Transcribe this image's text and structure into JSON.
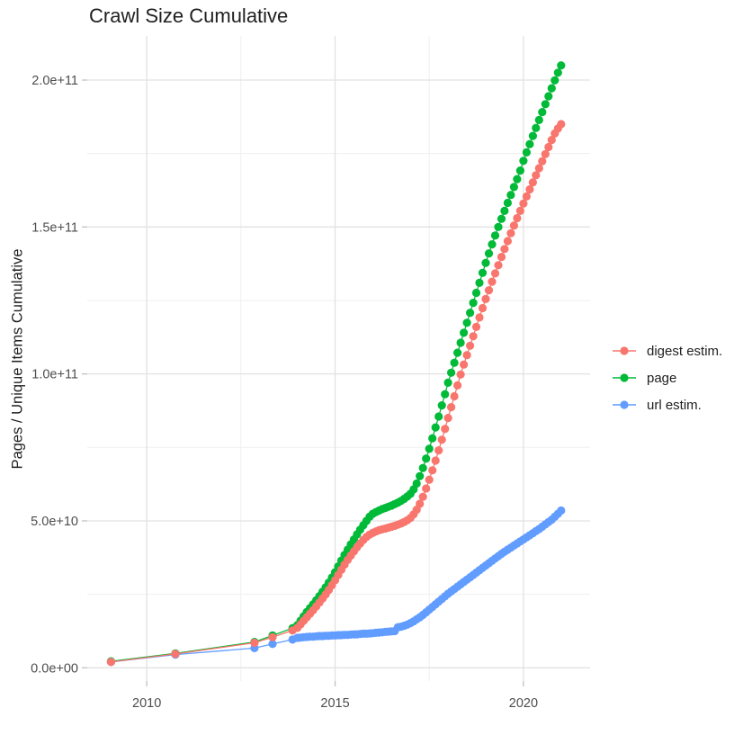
{
  "chart": {
    "title": "Crawl Size Cumulative",
    "ylabel": "Pages / Unique Items Cumulative",
    "xlabel": ""
  },
  "legend": {
    "items": [
      {
        "label": "digest estim.",
        "color": "#F8766D"
      },
      {
        "label": "page",
        "color": "#00BA38"
      },
      {
        "label": "url estim.",
        "color": "#619CFF"
      }
    ]
  },
  "chart_data": {
    "type": "scatter",
    "title": "Crawl Size Cumulative",
    "xlabel": "",
    "ylabel": "Pages / Unique Items Cumulative",
    "value_unit": "1e9 (values stored in billions; axis shows scientific notation)",
    "x_ticks": [
      2010,
      2015,
      2020
    ],
    "x_tick_labels": [
      "2010",
      "2015",
      "2020"
    ],
    "x_minor_ticks": [
      2012.5,
      2017.5
    ],
    "y_ticks_e9": [
      0,
      50,
      100,
      150,
      200
    ],
    "y_tick_labels": [
      "0.0e+00",
      "5.0e+10",
      "1.0e+11",
      "1.5e+11",
      "2.0e+11"
    ],
    "y_minor_ticks_e9": [
      25,
      75,
      125,
      175
    ],
    "xlim": [
      2008.42,
      2021.77
    ],
    "ylim_e9": [
      -4.5,
      215
    ],
    "grid": true,
    "legend_position": "right",
    "colors": {
      "major_grid": "#e2e2e2",
      "minor_grid": "#efefef",
      "tick": "#c2c2c2",
      "tick_text": "#4d4d4d"
    },
    "series": [
      {
        "name": "page",
        "color": "#00BA38",
        "early_points": [
          [
            2009.05,
            2.2
          ],
          [
            2010.76,
            4.9
          ],
          [
            2012.86,
            8.8
          ],
          [
            2013.34,
            11.0
          ],
          [
            2013.87,
            13.5
          ]
        ],
        "monthly_from": 2014.0,
        "monthly_step": 0.083333,
        "monthly_values_e9": [
          14.5,
          16.0,
          17.5,
          19.0,
          20.3,
          21.6,
          23.0,
          24.4,
          25.9,
          27.4,
          29.0,
          30.7,
          32.5,
          34.5,
          36.5,
          38.4,
          40.2,
          42.0,
          43.7,
          45.4,
          47.0,
          48.5,
          50.0,
          51.4,
          52.4,
          53.0,
          53.5,
          54.0,
          54.4,
          54.8,
          55.2,
          55.7,
          56.2,
          56.8,
          57.5,
          58.3,
          59.2,
          60.7,
          62.7,
          65.2,
          68.0,
          71.2,
          74.5,
          78.1,
          81.8,
          85.5,
          89.3,
          93.1,
          97.0,
          100.4,
          103.8,
          107.2,
          110.6,
          114.0,
          117.4,
          120.8,
          124.2,
          127.6,
          131.0,
          134.4,
          137.8,
          141.0,
          144.1,
          147.1,
          150.0,
          152.8,
          155.5,
          158.2,
          160.9,
          163.6,
          166.3,
          169.2,
          172.5,
          175.4,
          178.2,
          181.0,
          183.7,
          186.4,
          189.1,
          191.8,
          194.5,
          197.2,
          199.9,
          202.5,
          205.0
        ]
      },
      {
        "name": "url estim.",
        "color": "#619CFF",
        "early_points": [
          [
            2009.05,
            2.0
          ],
          [
            2010.76,
            4.5
          ],
          [
            2012.86,
            6.7
          ],
          [
            2013.34,
            8.1
          ],
          [
            2013.87,
            9.6
          ]
        ],
        "monthly_from": 2014.0,
        "monthly_step": 0.083333,
        "monthly_values_e9": [
          10.2,
          10.3,
          10.4,
          10.5,
          10.6,
          10.6,
          10.7,
          10.8,
          10.8,
          10.9,
          10.9,
          11.0,
          11.0,
          11.1,
          11.1,
          11.2,
          11.2,
          11.3,
          11.4,
          11.4,
          11.5,
          11.6,
          11.6,
          11.7,
          11.8,
          11.9,
          12.0,
          12.1,
          12.2,
          12.3,
          12.4,
          12.5,
          13.8,
          14.0,
          14.3,
          14.7,
          15.2,
          15.8,
          16.5,
          17.2,
          18.0,
          18.9,
          19.8,
          20.7,
          21.6,
          22.5,
          23.4,
          24.3,
          25.2,
          26.0,
          26.8,
          27.6,
          28.4,
          29.2,
          30.0,
          30.8,
          31.6,
          32.4,
          33.2,
          34.0,
          34.8,
          35.6,
          36.4,
          37.2,
          38.0,
          38.8,
          39.5,
          40.2,
          40.9,
          41.6,
          42.3,
          43.0,
          43.7,
          44.4,
          45.1,
          45.8,
          46.5,
          47.2,
          48.0,
          48.8,
          49.6,
          50.4,
          51.4,
          52.4,
          53.5
        ]
      },
      {
        "name": "digest estim.",
        "color": "#F8766D",
        "early_points": [
          [
            2009.05,
            2.0
          ],
          [
            2010.76,
            4.7
          ],
          [
            2012.86,
            8.5
          ],
          [
            2013.34,
            10.4
          ],
          [
            2013.87,
            12.7
          ]
        ],
        "monthly_from": 2014.0,
        "monthly_step": 0.083333,
        "monthly_values_e9": [
          13.6,
          14.8,
          16.0,
          17.2,
          18.4,
          19.6,
          20.9,
          22.2,
          23.6,
          25.0,
          26.5,
          28.1,
          29.8,
          31.6,
          33.4,
          35.1,
          36.7,
          38.2,
          39.6,
          41.0,
          42.3,
          43.5,
          44.5,
          45.3,
          45.9,
          46.4,
          46.8,
          47.1,
          47.4,
          47.7,
          48.0,
          48.3,
          48.7,
          49.1,
          49.6,
          50.2,
          51.0,
          52.2,
          53.8,
          55.8,
          58.2,
          61.0,
          64.0,
          67.2,
          70.5,
          74.0,
          77.6,
          81.3,
          85.0,
          88.7,
          92.4,
          96.1,
          99.8,
          103.2,
          106.4,
          109.6,
          112.8,
          116.0,
          119.2,
          122.4,
          125.5,
          128.5,
          131.4,
          134.2,
          137.0,
          139.8,
          142.5,
          145.2,
          147.9,
          150.5,
          153.0,
          155.5,
          158.0,
          160.4,
          162.8,
          165.2,
          167.6,
          170.0,
          172.4,
          174.8,
          177.2,
          179.6,
          181.8,
          183.5,
          185.0
        ]
      }
    ]
  }
}
